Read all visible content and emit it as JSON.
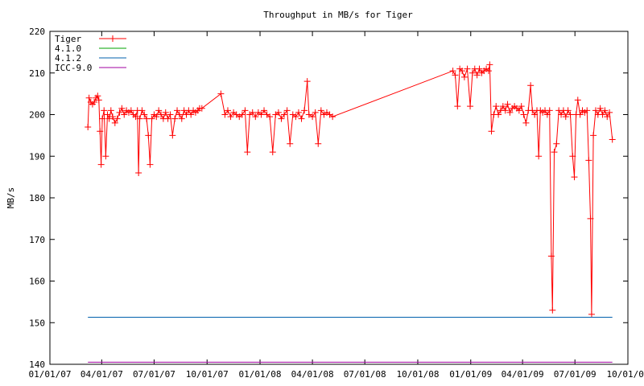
{
  "chart_data": {
    "type": "line",
    "title": "Throughput in MB/s for Tiger",
    "xlabel": "",
    "ylabel": "MB/s",
    "x_ticks": [
      "01/01/07",
      "04/01/07",
      "07/01/07",
      "10/01/07",
      "01/01/08",
      "04/01/08",
      "07/01/08",
      "10/01/08",
      "01/01/09",
      "04/01/09",
      "07/01/09",
      "10/01/09"
    ],
    "xlim": [
      "2007-01-01",
      "2009-10-01"
    ],
    "y_ticks": [
      140,
      150,
      160,
      170,
      180,
      190,
      200,
      210,
      220
    ],
    "ylim": [
      140,
      220
    ],
    "grid": false,
    "legend_position": "top-left",
    "series": [
      {
        "name": "Tiger",
        "color": "#ff0000",
        "marker": "plus",
        "points": [
          [
            "2007-03-08",
            197
          ],
          [
            "2007-03-10",
            204
          ],
          [
            "2007-03-13",
            203
          ],
          [
            "2007-03-16",
            202.5
          ],
          [
            "2007-03-19",
            203
          ],
          [
            "2007-03-22",
            204
          ],
          [
            "2007-03-25",
            204.5
          ],
          [
            "2007-03-27",
            203.5
          ],
          [
            "2007-03-29",
            196
          ],
          [
            "2007-03-31",
            188
          ],
          [
            "2007-04-02",
            199
          ],
          [
            "2007-04-05",
            201
          ],
          [
            "2007-04-08",
            190
          ],
          [
            "2007-04-11",
            200
          ],
          [
            "2007-04-14",
            199
          ],
          [
            "2007-04-17",
            201
          ],
          [
            "2007-04-20",
            199.5
          ],
          [
            "2007-04-24",
            198
          ],
          [
            "2007-04-28",
            199
          ],
          [
            "2007-05-02",
            200.5
          ],
          [
            "2007-05-06",
            201.5
          ],
          [
            "2007-05-10",
            200
          ],
          [
            "2007-05-14",
            201
          ],
          [
            "2007-05-18",
            200.5
          ],
          [
            "2007-05-22",
            201
          ],
          [
            "2007-05-26",
            200
          ],
          [
            "2007-05-30",
            199.5
          ],
          [
            "2007-06-02",
            201
          ],
          [
            "2007-06-04",
            186
          ],
          [
            "2007-06-06",
            199
          ],
          [
            "2007-06-10",
            201
          ],
          [
            "2007-06-14",
            200
          ],
          [
            "2007-06-18",
            199
          ],
          [
            "2007-06-21",
            195
          ],
          [
            "2007-06-24",
            188
          ],
          [
            "2007-06-27",
            199
          ],
          [
            "2007-07-01",
            200
          ],
          [
            "2007-07-05",
            199.5
          ],
          [
            "2007-07-09",
            201
          ],
          [
            "2007-07-13",
            200
          ],
          [
            "2007-07-17",
            199
          ],
          [
            "2007-07-21",
            200.5
          ],
          [
            "2007-07-25",
            199
          ],
          [
            "2007-07-29",
            200
          ],
          [
            "2007-08-02",
            195
          ],
          [
            "2007-08-06",
            199
          ],
          [
            "2007-08-10",
            201
          ],
          [
            "2007-08-14",
            200
          ],
          [
            "2007-08-18",
            199
          ],
          [
            "2007-08-22",
            201
          ],
          [
            "2007-08-26",
            200
          ],
          [
            "2007-08-30",
            201
          ],
          [
            "2007-09-03",
            200
          ],
          [
            "2007-09-07",
            201
          ],
          [
            "2007-09-11",
            200.5
          ],
          [
            "2007-09-15",
            201
          ],
          [
            "2007-09-18",
            201.5
          ],
          [
            "2007-09-22",
            201.5
          ],
          [
            "2007-10-25",
            205
          ],
          [
            "2007-11-01",
            200
          ],
          [
            "2007-11-06",
            201
          ],
          [
            "2007-11-11",
            199.5
          ],
          [
            "2007-11-16",
            200.5
          ],
          [
            "2007-11-21",
            200
          ],
          [
            "2007-11-26",
            199.5
          ],
          [
            "2007-12-01",
            200
          ],
          [
            "2007-12-06",
            201
          ],
          [
            "2007-12-10",
            191
          ],
          [
            "2007-12-14",
            200
          ],
          [
            "2007-12-19",
            200.5
          ],
          [
            "2007-12-24",
            199.5
          ],
          [
            "2007-12-29",
            200.5
          ],
          [
            "2008-01-03",
            200
          ],
          [
            "2008-01-08",
            201
          ],
          [
            "2008-01-13",
            200
          ],
          [
            "2008-01-18",
            199.5
          ],
          [
            "2008-01-23",
            191
          ],
          [
            "2008-01-28",
            200
          ],
          [
            "2008-02-02",
            200.5
          ],
          [
            "2008-02-07",
            199
          ],
          [
            "2008-02-12",
            200
          ],
          [
            "2008-02-17",
            201
          ],
          [
            "2008-02-22",
            193
          ],
          [
            "2008-02-27",
            200
          ],
          [
            "2008-03-03",
            199.5
          ],
          [
            "2008-03-08",
            200.5
          ],
          [
            "2008-03-13",
            199
          ],
          [
            "2008-03-18",
            201
          ],
          [
            "2008-03-23",
            208
          ],
          [
            "2008-03-26",
            200
          ],
          [
            "2008-04-01",
            199.5
          ],
          [
            "2008-04-06",
            200.5
          ],
          [
            "2008-04-11",
            193
          ],
          [
            "2008-04-16",
            201
          ],
          [
            "2008-04-21",
            200
          ],
          [
            "2008-04-26",
            200.5
          ],
          [
            "2008-05-01",
            200
          ],
          [
            "2008-05-06",
            199.5
          ],
          [
            "2008-12-01",
            210.5
          ],
          [
            "2008-12-05",
            209.5
          ],
          [
            "2008-12-09",
            202
          ],
          [
            "2008-12-13",
            211
          ],
          [
            "2008-12-17",
            210.5
          ],
          [
            "2008-12-21",
            209
          ],
          [
            "2008-12-26",
            211
          ],
          [
            "2008-12-31",
            202
          ],
          [
            "2009-01-04",
            210
          ],
          [
            "2009-01-08",
            211
          ],
          [
            "2009-01-12",
            209.5
          ],
          [
            "2009-01-16",
            211
          ],
          [
            "2009-01-20",
            210
          ],
          [
            "2009-01-24",
            210.5
          ],
          [
            "2009-01-28",
            211
          ],
          [
            "2009-02-01",
            210.5
          ],
          [
            "2009-02-03",
            212
          ],
          [
            "2009-02-06",
            196
          ],
          [
            "2009-02-10",
            200
          ],
          [
            "2009-02-14",
            202
          ],
          [
            "2009-02-18",
            200
          ],
          [
            "2009-02-22",
            201
          ],
          [
            "2009-02-26",
            202
          ],
          [
            "2009-03-02",
            201
          ],
          [
            "2009-03-06",
            202.5
          ],
          [
            "2009-03-10",
            200.5
          ],
          [
            "2009-03-14",
            201.5
          ],
          [
            "2009-03-18",
            202
          ],
          [
            "2009-03-22",
            201.5
          ],
          [
            "2009-03-26",
            201
          ],
          [
            "2009-03-30",
            202
          ],
          [
            "2009-04-03",
            200
          ],
          [
            "2009-04-07",
            198
          ],
          [
            "2009-04-11",
            201
          ],
          [
            "2009-04-15",
            207
          ],
          [
            "2009-04-18",
            201
          ],
          [
            "2009-04-22",
            200
          ],
          [
            "2009-04-26",
            201
          ],
          [
            "2009-04-29",
            190
          ],
          [
            "2009-05-02",
            201
          ],
          [
            "2009-05-06",
            200.5
          ],
          [
            "2009-05-10",
            201
          ],
          [
            "2009-05-14",
            200
          ],
          [
            "2009-05-18",
            201
          ],
          [
            "2009-05-21",
            166
          ],
          [
            "2009-05-23",
            153
          ],
          [
            "2009-05-26",
            191
          ],
          [
            "2009-05-30",
            193
          ],
          [
            "2009-06-03",
            201
          ],
          [
            "2009-06-07",
            200
          ],
          [
            "2009-06-11",
            201
          ],
          [
            "2009-06-15",
            199.5
          ],
          [
            "2009-06-19",
            201
          ],
          [
            "2009-06-23",
            200
          ],
          [
            "2009-06-27",
            190
          ],
          [
            "2009-06-30",
            185
          ],
          [
            "2009-07-03",
            200
          ],
          [
            "2009-07-06",
            203.5
          ],
          [
            "2009-07-10",
            200
          ],
          [
            "2009-07-14",
            201
          ],
          [
            "2009-07-18",
            200.5
          ],
          [
            "2009-07-22",
            201
          ],
          [
            "2009-07-25",
            189
          ],
          [
            "2009-07-28",
            175
          ],
          [
            "2009-07-30",
            152
          ],
          [
            "2009-08-02",
            195
          ],
          [
            "2009-08-06",
            201
          ],
          [
            "2009-08-10",
            200
          ],
          [
            "2009-08-14",
            201.5
          ],
          [
            "2009-08-18",
            200
          ],
          [
            "2009-08-22",
            201
          ],
          [
            "2009-08-26",
            199.5
          ],
          [
            "2009-08-30",
            200.5
          ],
          [
            "2009-09-04",
            194
          ]
        ]
      },
      {
        "name": "4.1.0",
        "color": "#00a000",
        "points": []
      },
      {
        "name": "4.1.2",
        "color": "#0060ad",
        "points": [
          [
            "2007-03-08",
            151.3
          ],
          [
            "2009-09-04",
            151.3
          ]
        ]
      },
      {
        "name": "ICC-9.0",
        "color": "#a000a0",
        "points": [
          [
            "2007-03-08",
            140.5
          ],
          [
            "2009-09-04",
            140.5
          ]
        ]
      }
    ]
  }
}
